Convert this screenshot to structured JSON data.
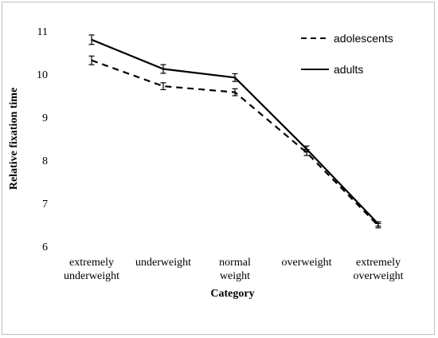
{
  "chart_data": {
    "type": "line",
    "categories": [
      [
        "extremely",
        "underweight"
      ],
      [
        "underweight"
      ],
      [
        "normal",
        "weight"
      ],
      [
        "overweight"
      ],
      [
        "extremely",
        "overweight"
      ]
    ],
    "xlabel": "Category",
    "ylabel": "Relative fixation time",
    "ylim": [
      6,
      11
    ],
    "yticks": [
      6,
      7,
      8,
      9,
      10,
      11
    ],
    "grid": false,
    "legend_position": "top-right",
    "series": [
      {
        "name": "adolescents",
        "style": "dashed",
        "color": "#000000",
        "values": [
          10.32,
          9.72,
          9.58,
          8.18,
          6.48
        ],
        "error": [
          0.1,
          0.08,
          0.08,
          0.07,
          0.05
        ]
      },
      {
        "name": "adults",
        "style": "solid",
        "color": "#000000",
        "values": [
          10.8,
          10.12,
          9.92,
          8.26,
          6.52
        ],
        "error": [
          0.11,
          0.1,
          0.09,
          0.07,
          0.05
        ]
      }
    ]
  }
}
